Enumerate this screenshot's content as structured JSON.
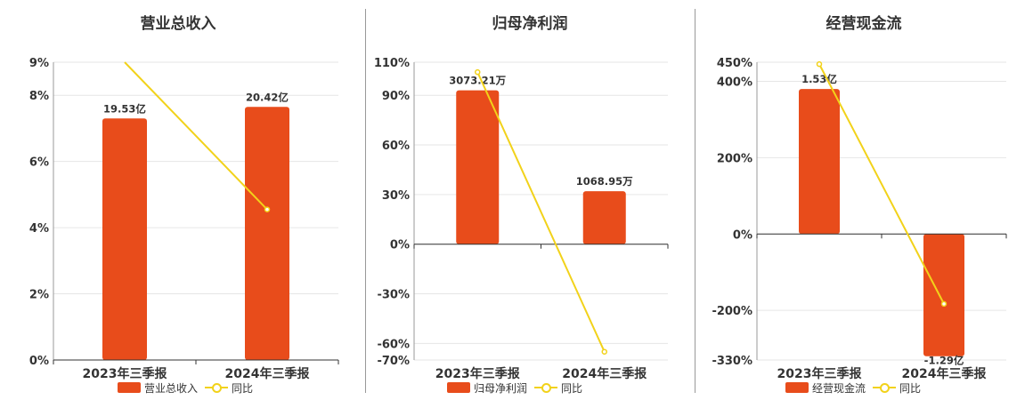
{
  "colors": {
    "bar": "#e84c1b",
    "line": "#f2d21a",
    "grid": "#e6e6e6",
    "axis": "#333333"
  },
  "legend": {
    "line_label": "同比"
  },
  "chart_data": [
    {
      "type": "bar",
      "title": "营业总收入",
      "categories": [
        "2023年三季报",
        "2024年三季报"
      ],
      "series": [
        {
          "name": "营业总收入",
          "type": "bar",
          "values": [
            7.3,
            7.65
          ],
          "labels": [
            "19.53亿",
            "20.42亿"
          ]
        },
        {
          "name": "同比",
          "type": "line",
          "values": [
            9.0,
            4.55
          ]
        }
      ],
      "yticks": [
        0,
        2,
        4,
        6,
        8,
        9
      ],
      "ytick_labels": [
        "0%",
        "2%",
        "4%",
        "6%",
        "8%",
        "9%"
      ],
      "ylim": [
        0,
        9
      ]
    },
    {
      "type": "bar",
      "title": "归母净利润",
      "categories": [
        "2023年三季报",
        "2024年三季报"
      ],
      "series": [
        {
          "name": "归母净利润",
          "type": "bar",
          "values": [
            93,
            32
          ],
          "labels": [
            "3073.21万",
            "1068.95万"
          ]
        },
        {
          "name": "同比",
          "type": "line",
          "values": [
            104,
            -65
          ]
        }
      ],
      "yticks": [
        -70,
        -60,
        -30,
        0,
        30,
        60,
        90,
        110
      ],
      "ytick_labels": [
        "-70%",
        "-60%",
        "-30%",
        "0%",
        "30%",
        "60%",
        "90%",
        "110%"
      ],
      "ylim": [
        -70,
        110
      ]
    },
    {
      "type": "bar",
      "title": "经营现金流",
      "categories": [
        "2023年三季报",
        "2024年三季报"
      ],
      "series": [
        {
          "name": "经营现金流",
          "type": "bar",
          "values": [
            380,
            -320
          ],
          "labels": [
            "1.53亿",
            "-1.29亿"
          ]
        },
        {
          "name": "同比",
          "type": "line",
          "values": [
            445,
            -183
          ]
        }
      ],
      "yticks": [
        -330,
        -200,
        0,
        200,
        400,
        450
      ],
      "ytick_labels": [
        "-330%",
        "-200%",
        "0%",
        "200%",
        "400%",
        "450%"
      ],
      "ylim": [
        -330,
        450
      ]
    }
  ]
}
